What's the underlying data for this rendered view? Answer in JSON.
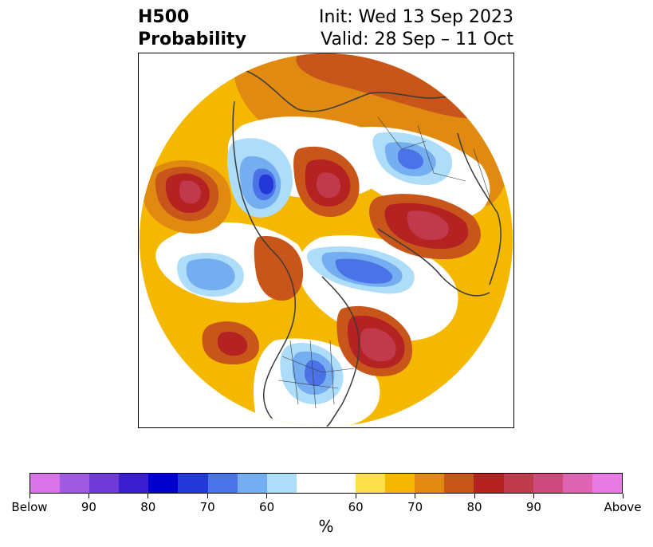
{
  "title": {
    "left_line1": "H500",
    "left_line2": "Probability",
    "right_line1": "Init: Wed 13 Sep 2023",
    "right_line2": "Valid: 28 Sep – 11 Oct"
  },
  "map": {
    "projection": "north-polar-stereographic",
    "variable": "500 hPa height anomaly probability",
    "colors": {
      "land_lines": "#3a3a3a",
      "background": "#ffffff"
    }
  },
  "colorbar": {
    "unit_label": "%",
    "tick_labels": [
      "Below",
      "90",
      "80",
      "70",
      "60",
      "60",
      "70",
      "80",
      "90",
      "Above"
    ],
    "colors": [
      "#d874e8",
      "#a05ae0",
      "#6e3ad8",
      "#3a1ed0",
      "#0000cc",
      "#2338d9",
      "#4b72e6",
      "#74aef0",
      "#aeddfa",
      "#ffffff",
      "#ffffff",
      "#ffe04a",
      "#f5b800",
      "#e08a12",
      "#c8561a",
      "#b42222",
      "#c0394c",
      "#cc4a7c",
      "#dc64b0",
      "#e87ae4"
    ]
  }
}
